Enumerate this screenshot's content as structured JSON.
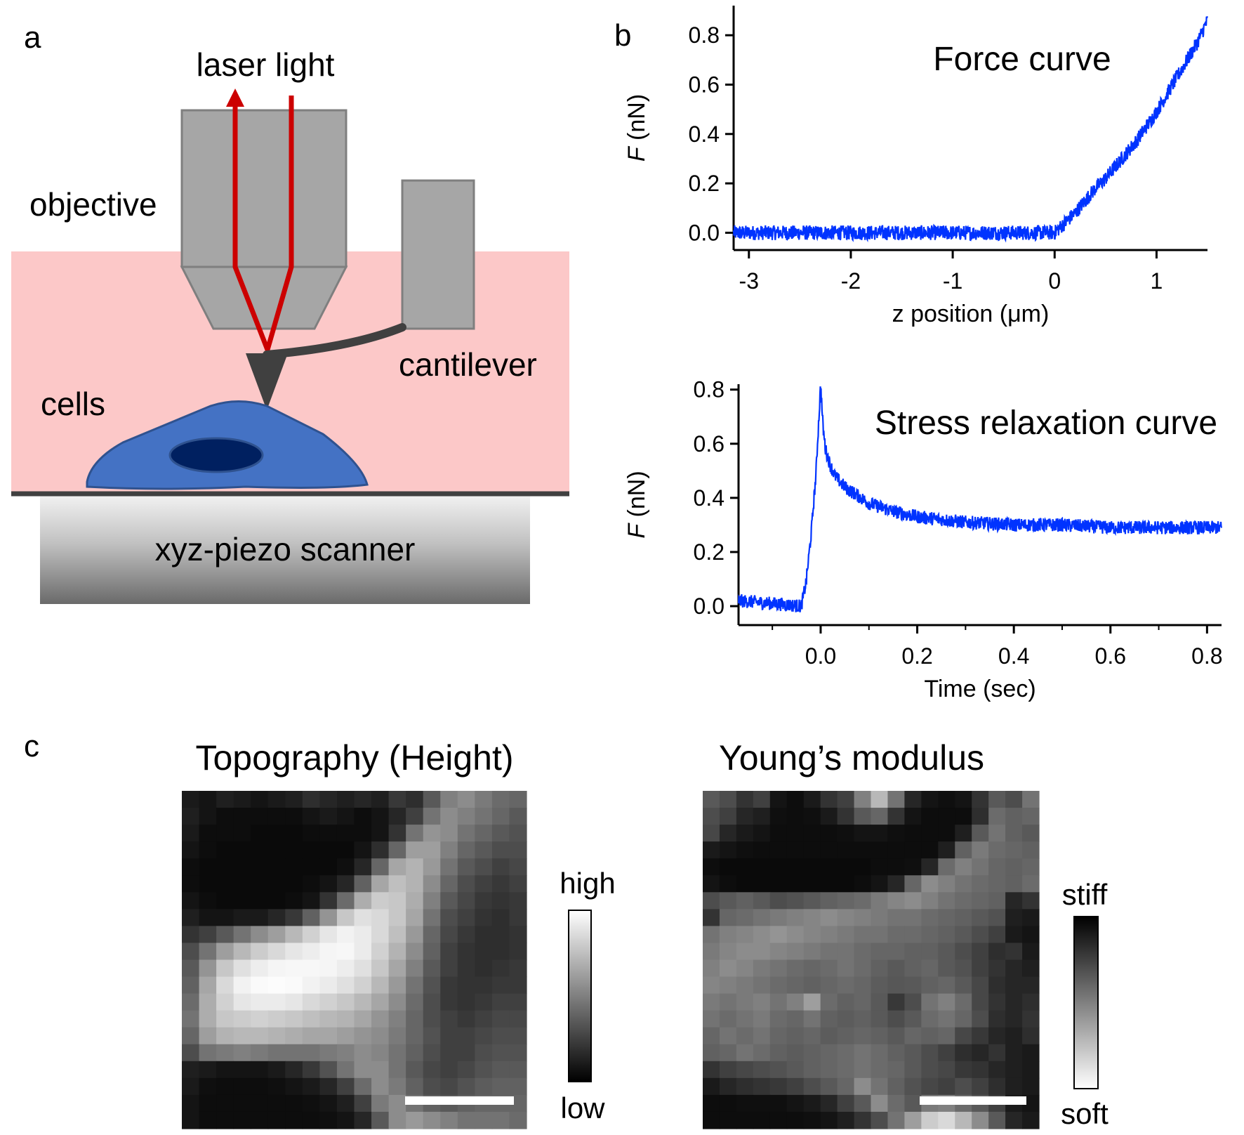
{
  "panels": {
    "a": {
      "label": "a",
      "laser": "laser light",
      "objective": "objective",
      "cells": "cells",
      "cantilever": "cantilever",
      "scanner": "xyz-piezo scanner",
      "colors": {
        "medium": "#fcc8c8",
        "grey": "#a6a6a6",
        "laser": "#cc0000",
        "cell": "#4472c4",
        "nucleus": "#002060"
      }
    },
    "b": {
      "label": "b"
    },
    "c": {
      "label": "c",
      "topo_title": "Topography (Height)",
      "topo_high": "high",
      "topo_low": "low",
      "ym_title": "Young’s modulus",
      "ym_stiff": "stiff",
      "ym_soft": "soft"
    }
  },
  "chart_data": [
    {
      "type": "line",
      "title": "Force curve",
      "xlabel": "z position (μm)",
      "ylabel_italic": "F",
      "ylabel_rest": " (nN)",
      "xlim": [
        -3.15,
        1.5
      ],
      "ylim": [
        -0.07,
        0.92
      ],
      "xticks": [
        -3,
        -2,
        -1,
        0,
        1
      ],
      "xtick_labels": [
        "-3",
        "-2",
        "-1",
        "0",
        "1"
      ],
      "yticks": [
        0.0,
        0.2,
        0.4,
        0.6,
        0.8
      ],
      "ytick_labels": [
        "0.0",
        "0.2",
        "0.4",
        "0.6",
        "0.8"
      ],
      "color": "#0033ff",
      "x": [
        -3.15,
        -2.5,
        -2.0,
        -1.5,
        -1.0,
        -0.5,
        0.0,
        0.1,
        0.2,
        0.3,
        0.4,
        0.5,
        0.6,
        0.7,
        0.8,
        0.9,
        1.0,
        1.1,
        1.2,
        1.3,
        1.4,
        1.5
      ],
      "y": [
        0.0,
        0.0,
        0.0,
        0.0,
        0.0,
        0.0,
        0.0,
        0.04,
        0.08,
        0.13,
        0.18,
        0.22,
        0.27,
        0.32,
        0.37,
        0.43,
        0.49,
        0.56,
        0.63,
        0.7,
        0.77,
        0.86
      ]
    },
    {
      "type": "line",
      "title": "Stress relaxation curve",
      "xlabel": "Time (sec)",
      "ylabel_italic": "F",
      "ylabel_rest": " (nN)",
      "xlim": [
        -0.17,
        0.83
      ],
      "ylim": [
        -0.07,
        0.82
      ],
      "xticks": [
        0.0,
        0.2,
        0.4,
        0.6,
        0.8
      ],
      "xtick_labels": [
        "0.0",
        "0.2",
        "0.4",
        "0.6",
        "0.8"
      ],
      "yticks": [
        0.0,
        0.2,
        0.4,
        0.6,
        0.8
      ],
      "ytick_labels": [
        "0.0",
        "0.2",
        "0.4",
        "0.6",
        "0.8"
      ],
      "color": "#0033ff",
      "x": [
        -0.17,
        -0.1,
        -0.04,
        -0.03,
        -0.02,
        -0.01,
        0.0,
        0.005,
        0.01,
        0.02,
        0.03,
        0.05,
        0.1,
        0.15,
        0.2,
        0.3,
        0.4,
        0.5,
        0.6,
        0.7,
        0.83
      ],
      "y": [
        0.02,
        0.01,
        0.0,
        0.09,
        0.26,
        0.48,
        0.82,
        0.66,
        0.58,
        0.52,
        0.48,
        0.44,
        0.38,
        0.35,
        0.33,
        0.31,
        0.3,
        0.3,
        0.29,
        0.29,
        0.29
      ]
    }
  ],
  "heatmaps": {
    "topography": {
      "rows": 20,
      "cols": 20,
      "low": "#000000",
      "high": "#ffffff",
      "values": [
        [
          0.1,
          0.08,
          0.12,
          0.1,
          0.08,
          0.1,
          0.12,
          0.18,
          0.15,
          0.12,
          0.15,
          0.12,
          0.22,
          0.18,
          0.35,
          0.5,
          0.55,
          0.48,
          0.42,
          0.4
        ],
        [
          0.12,
          0.08,
          0.05,
          0.05,
          0.05,
          0.05,
          0.05,
          0.08,
          0.1,
          0.08,
          0.05,
          0.08,
          0.15,
          0.25,
          0.45,
          0.55,
          0.5,
          0.45,
          0.4,
          0.35
        ],
        [
          0.1,
          0.05,
          0.05,
          0.05,
          0.04,
          0.04,
          0.04,
          0.05,
          0.05,
          0.05,
          0.05,
          0.08,
          0.2,
          0.45,
          0.58,
          0.55,
          0.45,
          0.4,
          0.35,
          0.32
        ],
        [
          0.08,
          0.05,
          0.04,
          0.04,
          0.04,
          0.04,
          0.04,
          0.04,
          0.04,
          0.04,
          0.08,
          0.18,
          0.4,
          0.62,
          0.62,
          0.5,
          0.4,
          0.35,
          0.3,
          0.3
        ],
        [
          0.05,
          0.04,
          0.04,
          0.04,
          0.04,
          0.04,
          0.04,
          0.04,
          0.04,
          0.06,
          0.15,
          0.4,
          0.65,
          0.7,
          0.6,
          0.45,
          0.35,
          0.3,
          0.25,
          0.28
        ],
        [
          0.05,
          0.04,
          0.04,
          0.04,
          0.04,
          0.04,
          0.04,
          0.05,
          0.08,
          0.15,
          0.38,
          0.65,
          0.75,
          0.7,
          0.55,
          0.4,
          0.3,
          0.25,
          0.22,
          0.25
        ],
        [
          0.08,
          0.05,
          0.04,
          0.04,
          0.04,
          0.04,
          0.05,
          0.08,
          0.2,
          0.42,
          0.68,
          0.8,
          0.78,
          0.68,
          0.5,
          0.35,
          0.28,
          0.22,
          0.2,
          0.22
        ],
        [
          0.12,
          0.08,
          0.08,
          0.1,
          0.1,
          0.15,
          0.22,
          0.38,
          0.58,
          0.78,
          0.88,
          0.85,
          0.78,
          0.65,
          0.45,
          0.3,
          0.25,
          0.2,
          0.18,
          0.22
        ],
        [
          0.2,
          0.25,
          0.35,
          0.45,
          0.55,
          0.62,
          0.72,
          0.82,
          0.9,
          0.95,
          0.92,
          0.85,
          0.75,
          0.6,
          0.4,
          0.28,
          0.22,
          0.18,
          0.18,
          0.2
        ],
        [
          0.3,
          0.45,
          0.62,
          0.72,
          0.8,
          0.85,
          0.9,
          0.93,
          0.96,
          0.97,
          0.92,
          0.82,
          0.7,
          0.55,
          0.38,
          0.25,
          0.2,
          0.18,
          0.18,
          0.2
        ],
        [
          0.35,
          0.58,
          0.78,
          0.88,
          0.93,
          0.96,
          0.97,
          0.97,
          0.96,
          0.93,
          0.88,
          0.78,
          0.65,
          0.5,
          0.35,
          0.25,
          0.2,
          0.18,
          0.2,
          0.22
        ],
        [
          0.38,
          0.65,
          0.85,
          0.95,
          0.98,
          0.99,
          0.98,
          0.95,
          0.92,
          0.88,
          0.82,
          0.72,
          0.6,
          0.45,
          0.32,
          0.22,
          0.2,
          0.2,
          0.22,
          0.22
        ],
        [
          0.42,
          0.68,
          0.82,
          0.9,
          0.92,
          0.92,
          0.9,
          0.85,
          0.82,
          0.78,
          0.72,
          0.65,
          0.55,
          0.42,
          0.3,
          0.22,
          0.2,
          0.22,
          0.25,
          0.25
        ],
        [
          0.45,
          0.68,
          0.78,
          0.8,
          0.82,
          0.8,
          0.78,
          0.75,
          0.72,
          0.7,
          0.65,
          0.58,
          0.5,
          0.4,
          0.3,
          0.25,
          0.22,
          0.25,
          0.28,
          0.28
        ],
        [
          0.4,
          0.62,
          0.7,
          0.72,
          0.72,
          0.7,
          0.68,
          0.65,
          0.65,
          0.62,
          0.58,
          0.55,
          0.48,
          0.4,
          0.32,
          0.25,
          0.25,
          0.28,
          0.3,
          0.3
        ],
        [
          0.3,
          0.45,
          0.48,
          0.5,
          0.48,
          0.45,
          0.45,
          0.45,
          0.48,
          0.5,
          0.55,
          0.52,
          0.45,
          0.38,
          0.3,
          0.25,
          0.25,
          0.3,
          0.32,
          0.32
        ],
        [
          0.12,
          0.1,
          0.08,
          0.08,
          0.08,
          0.1,
          0.15,
          0.22,
          0.32,
          0.45,
          0.55,
          0.55,
          0.45,
          0.35,
          0.28,
          0.25,
          0.28,
          0.32,
          0.35,
          0.35
        ],
        [
          0.1,
          0.06,
          0.05,
          0.05,
          0.05,
          0.06,
          0.08,
          0.1,
          0.15,
          0.25,
          0.42,
          0.55,
          0.48,
          0.38,
          0.3,
          0.28,
          0.32,
          0.36,
          0.38,
          0.38
        ],
        [
          0.08,
          0.05,
          0.05,
          0.05,
          0.05,
          0.05,
          0.05,
          0.06,
          0.08,
          0.12,
          0.25,
          0.48,
          0.55,
          0.45,
          0.38,
          0.35,
          0.38,
          0.4,
          0.4,
          0.4
        ],
        [
          0.08,
          0.05,
          0.05,
          0.05,
          0.05,
          0.05,
          0.05,
          0.05,
          0.06,
          0.08,
          0.15,
          0.35,
          0.55,
          0.6,
          0.55,
          0.5,
          0.45,
          0.45,
          0.45,
          0.42
        ]
      ]
    },
    "youngs_modulus": {
      "rows": 20,
      "cols": 20,
      "low": "#000000",
      "high": "#ffffff",
      "values": [
        [
          0.35,
          0.3,
          0.2,
          0.25,
          0.08,
          0.05,
          0.1,
          0.2,
          0.25,
          0.5,
          0.72,
          0.45,
          0.15,
          0.08,
          0.06,
          0.08,
          0.2,
          0.35,
          0.3,
          0.45
        ],
        [
          0.3,
          0.25,
          0.15,
          0.12,
          0.06,
          0.05,
          0.06,
          0.1,
          0.2,
          0.35,
          0.4,
          0.2,
          0.08,
          0.05,
          0.05,
          0.05,
          0.18,
          0.42,
          0.38,
          0.4
        ],
        [
          0.28,
          0.15,
          0.1,
          0.08,
          0.05,
          0.05,
          0.05,
          0.05,
          0.06,
          0.08,
          0.08,
          0.06,
          0.05,
          0.05,
          0.05,
          0.12,
          0.35,
          0.45,
          0.38,
          0.35
        ],
        [
          0.1,
          0.08,
          0.06,
          0.05,
          0.05,
          0.05,
          0.05,
          0.05,
          0.05,
          0.05,
          0.05,
          0.05,
          0.05,
          0.05,
          0.12,
          0.38,
          0.48,
          0.42,
          0.4,
          0.38
        ],
        [
          0.05,
          0.04,
          0.04,
          0.04,
          0.04,
          0.04,
          0.04,
          0.04,
          0.04,
          0.04,
          0.05,
          0.05,
          0.06,
          0.15,
          0.42,
          0.5,
          0.45,
          0.4,
          0.38,
          0.4
        ],
        [
          0.08,
          0.05,
          0.04,
          0.04,
          0.04,
          0.04,
          0.04,
          0.04,
          0.04,
          0.05,
          0.08,
          0.15,
          0.4,
          0.55,
          0.5,
          0.45,
          0.42,
          0.4,
          0.38,
          0.42
        ],
        [
          0.3,
          0.35,
          0.38,
          0.35,
          0.3,
          0.32,
          0.35,
          0.38,
          0.4,
          0.42,
          0.48,
          0.52,
          0.55,
          0.5,
          0.45,
          0.42,
          0.4,
          0.38,
          0.15,
          0.2
        ],
        [
          0.2,
          0.4,
          0.42,
          0.45,
          0.48,
          0.5,
          0.52,
          0.55,
          0.52,
          0.5,
          0.48,
          0.45,
          0.45,
          0.42,
          0.4,
          0.38,
          0.35,
          0.32,
          0.12,
          0.1
        ],
        [
          0.45,
          0.5,
          0.52,
          0.55,
          0.58,
          0.55,
          0.52,
          0.5,
          0.48,
          0.45,
          0.45,
          0.42,
          0.42,
          0.4,
          0.38,
          0.35,
          0.3,
          0.25,
          0.1,
          0.08
        ],
        [
          0.48,
          0.52,
          0.55,
          0.55,
          0.52,
          0.5,
          0.48,
          0.45,
          0.45,
          0.42,
          0.4,
          0.4,
          0.38,
          0.38,
          0.35,
          0.3,
          0.25,
          0.18,
          0.2,
          0.1
        ],
        [
          0.5,
          0.55,
          0.52,
          0.48,
          0.45,
          0.42,
          0.4,
          0.42,
          0.45,
          0.42,
          0.38,
          0.35,
          0.38,
          0.4,
          0.35,
          0.32,
          0.25,
          0.2,
          0.15,
          0.12
        ],
        [
          0.52,
          0.5,
          0.48,
          0.45,
          0.42,
          0.4,
          0.38,
          0.4,
          0.42,
          0.4,
          0.36,
          0.34,
          0.35,
          0.38,
          0.4,
          0.35,
          0.28,
          0.18,
          0.15,
          0.15
        ],
        [
          0.48,
          0.45,
          0.48,
          0.5,
          0.45,
          0.5,
          0.62,
          0.42,
          0.38,
          0.4,
          0.35,
          0.22,
          0.3,
          0.45,
          0.5,
          0.42,
          0.28,
          0.2,
          0.15,
          0.18
        ],
        [
          0.45,
          0.42,
          0.45,
          0.48,
          0.42,
          0.4,
          0.45,
          0.38,
          0.36,
          0.38,
          0.35,
          0.3,
          0.35,
          0.42,
          0.45,
          0.4,
          0.3,
          0.18,
          0.15,
          0.2
        ],
        [
          0.4,
          0.45,
          0.42,
          0.45,
          0.4,
          0.38,
          0.4,
          0.36,
          0.38,
          0.4,
          0.38,
          0.35,
          0.4,
          0.38,
          0.4,
          0.28,
          0.22,
          0.15,
          0.12,
          0.18
        ],
        [
          0.38,
          0.4,
          0.45,
          0.42,
          0.38,
          0.36,
          0.38,
          0.4,
          0.42,
          0.45,
          0.42,
          0.38,
          0.35,
          0.3,
          0.25,
          0.18,
          0.15,
          0.2,
          0.12,
          0.1
        ],
        [
          0.2,
          0.25,
          0.28,
          0.3,
          0.32,
          0.35,
          0.38,
          0.4,
          0.42,
          0.45,
          0.42,
          0.4,
          0.35,
          0.3,
          0.28,
          0.22,
          0.2,
          0.15,
          0.12,
          0.1
        ],
        [
          0.1,
          0.15,
          0.18,
          0.2,
          0.22,
          0.25,
          0.3,
          0.35,
          0.4,
          0.55,
          0.45,
          0.38,
          0.32,
          0.28,
          0.25,
          0.3,
          0.25,
          0.18,
          0.12,
          0.1
        ],
        [
          0.05,
          0.05,
          0.06,
          0.06,
          0.06,
          0.08,
          0.1,
          0.15,
          0.25,
          0.35,
          0.55,
          0.42,
          0.35,
          0.48,
          0.5,
          0.42,
          0.35,
          0.25,
          0.1,
          0.08
        ],
        [
          0.05,
          0.05,
          0.05,
          0.05,
          0.05,
          0.05,
          0.06,
          0.08,
          0.12,
          0.2,
          0.3,
          0.45,
          0.62,
          0.8,
          0.85,
          0.72,
          0.55,
          0.35,
          0.15,
          0.1
        ]
      ]
    }
  }
}
